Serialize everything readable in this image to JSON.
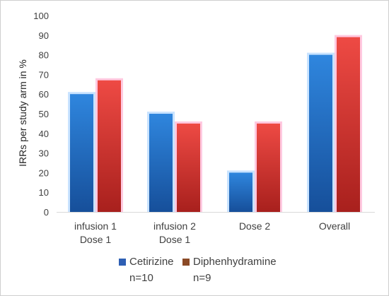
{
  "chart_data": {
    "type": "bar",
    "ylabel": "IRRs per study arm in %",
    "ylim": [
      0,
      100
    ],
    "yticks": [
      0,
      10,
      20,
      30,
      40,
      50,
      60,
      70,
      80,
      90,
      100
    ],
    "grid": false,
    "legend_placement": "bottom",
    "categories": [
      [
        "infusion 1",
        "Dose 1"
      ],
      [
        "infusion 2",
        "Dose 1"
      ],
      [
        "Dose 2"
      ],
      [
        "Overall"
      ]
    ],
    "series": [
      {
        "name": "Cetirizine",
        "n_label": "n=10",
        "color": "#1f6fc8",
        "swatch": "#2e5fb4",
        "values": [
          60,
          50,
          20,
          80
        ]
      },
      {
        "name": "Diphenhydramine",
        "n_label": "n=9",
        "color": "#d9352f",
        "swatch": "#8b4a26",
        "values": [
          67,
          45,
          45,
          89
        ]
      }
    ]
  }
}
